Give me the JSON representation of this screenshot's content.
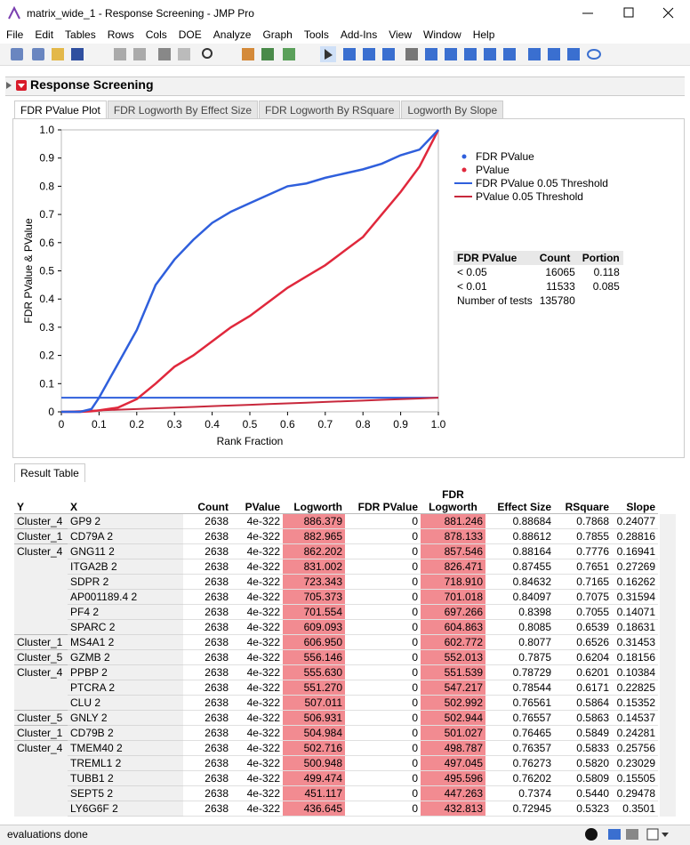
{
  "window": {
    "title": "matrix_wide_1 - Response Screening - JMP Pro"
  },
  "menu": [
    "File",
    "Edit",
    "Tables",
    "Rows",
    "Cols",
    "DOE",
    "Analyze",
    "Graph",
    "Tools",
    "Add-Ins",
    "View",
    "Window",
    "Help"
  ],
  "report": {
    "title": "Response Screening",
    "tabs": [
      "FDR PValue Plot",
      "FDR Logworth By Effect Size",
      "FDR Logworth By RSquare",
      "Logworth By Slope"
    ]
  },
  "chart_data": {
    "type": "line",
    "x_label": "Rank Fraction",
    "y_label": "FDR PValue & PValue",
    "xlim": [
      0,
      1
    ],
    "ylim": [
      0,
      1
    ],
    "xticks": [
      0,
      0.1,
      0.2,
      0.3,
      0.4,
      0.5,
      0.6,
      0.7,
      0.8,
      0.9,
      {
        "value": 1,
        "label": "1.0"
      }
    ],
    "yticks": [
      0,
      0.1,
      0.2,
      0.3,
      0.4,
      0.5,
      0.6,
      0.7,
      0.8,
      0.9,
      {
        "value": 1,
        "label": "1.0"
      }
    ],
    "x": [
      0,
      0.05,
      0.08,
      0.1,
      0.15,
      0.2,
      0.25,
      0.3,
      0.35,
      0.4,
      0.45,
      0.5,
      0.55,
      0.6,
      0.65,
      0.7,
      0.75,
      0.8,
      0.85,
      0.9,
      0.95,
      1
    ],
    "series": [
      {
        "name": "FDR PValue",
        "color": "#2f5fdc",
        "legend_symbol": "dot",
        "values": [
          0,
          0,
          0.01,
          0.05,
          0.17,
          0.29,
          0.45,
          0.54,
          0.61,
          0.67,
          0.71,
          0.74,
          0.77,
          0.8,
          0.81,
          0.83,
          0.845,
          0.86,
          0.88,
          0.91,
          0.93,
          1
        ]
      },
      {
        "name": "PValue",
        "color": "#e0283c",
        "legend_symbol": "dot",
        "values": [
          0,
          0,
          0.002,
          0.005,
          0.015,
          0.045,
          0.1,
          0.16,
          0.2,
          0.25,
          0.3,
          0.34,
          0.39,
          0.44,
          0.48,
          0.52,
          0.57,
          0.62,
          0.7,
          0.78,
          0.87,
          1
        ]
      },
      {
        "name": "FDR PValue 0.05 Threshold",
        "color": "#2f5fdc",
        "legend_symbol": "line",
        "values": [
          0.05,
          0.05,
          0.05,
          0.05,
          0.05,
          0.05,
          0.05,
          0.05,
          0.05,
          0.05,
          0.05,
          0.05,
          0.05,
          0.05,
          0.05,
          0.05,
          0.05,
          0.05,
          0.05,
          0.05,
          0.05,
          0.05
        ]
      },
      {
        "name": "PValue 0.05 Threshold",
        "color": "#c8283c",
        "legend_symbol": "line",
        "values": [
          0,
          0.0025,
          0.004,
          0.005,
          0.0075,
          0.01,
          0.0125,
          0.015,
          0.0175,
          0.02,
          0.0225,
          0.025,
          0.0275,
          0.03,
          0.0325,
          0.035,
          0.0375,
          0.04,
          0.0425,
          0.045,
          0.0475,
          0.05
        ]
      }
    ]
  },
  "stats": {
    "header": [
      "FDR PValue",
      "Count",
      "Portion"
    ],
    "rows": [
      [
        "< 0.05",
        "16065",
        "0.118"
      ],
      [
        "< 0.01",
        "11533",
        "0.085"
      ],
      [
        "Number of tests",
        "135780",
        null
      ]
    ]
  },
  "results": {
    "tab": "Result Table",
    "header": [
      "Y",
      "X",
      "Count",
      "PValue",
      "Logworth",
      "FDR PValue",
      "FDR Logworth",
      "Effect Size",
      "RSquare",
      "Slope"
    ],
    "rows": [
      [
        "Cluster_4",
        "GP9 2",
        "2638",
        "4e-322",
        "886.379",
        "0",
        "881.246",
        "0.88684",
        "0.7868",
        "0.24077"
      ],
      [
        "Cluster_1",
        "CD79A 2",
        "2638",
        "4e-322",
        "882.965",
        "0",
        "878.133",
        "0.88612",
        "0.7855",
        "0.28816"
      ],
      [
        "Cluster_4",
        "GNG11 2",
        "2638",
        "4e-322",
        "862.202",
        "0",
        "857.546",
        "0.88164",
        "0.7776",
        "0.16941"
      ],
      [
        null,
        "ITGA2B 2",
        "2638",
        "4e-322",
        "831.002",
        "0",
        "826.471",
        "0.87455",
        "0.7651",
        "0.27269"
      ],
      [
        null,
        "SDPR 2",
        "2638",
        "4e-322",
        "723.343",
        "0",
        "718.910",
        "0.84632",
        "0.7165",
        "0.16262"
      ],
      [
        null,
        "AP001189.4 2",
        "2638",
        "4e-322",
        "705.373",
        "0",
        "701.018",
        "0.84097",
        "0.7075",
        "0.31594"
      ],
      [
        null,
        "PF4 2",
        "2638",
        "4e-322",
        "701.554",
        "0",
        "697.266",
        "0.8398",
        "0.7055",
        "0.14071"
      ],
      [
        null,
        "SPARC 2",
        "2638",
        "4e-322",
        "609.093",
        "0",
        "604.863",
        "0.8085",
        "0.6539",
        "0.18631"
      ],
      [
        "Cluster_1",
        "MS4A1 2",
        "2638",
        "4e-322",
        "606.950",
        "0",
        "602.772",
        "0.8077",
        "0.6526",
        "0.31453"
      ],
      [
        "Cluster_5",
        "GZMB 2",
        "2638",
        "4e-322",
        "556.146",
        "0",
        "552.013",
        "0.7875",
        "0.6204",
        "0.18156"
      ],
      [
        "Cluster_4",
        "PPBP 2",
        "2638",
        "4e-322",
        "555.630",
        "0",
        "551.539",
        "0.78729",
        "0.6201",
        "0.10384"
      ],
      [
        null,
        "PTCRA 2",
        "2638",
        "4e-322",
        "551.270",
        "0",
        "547.217",
        "0.78544",
        "0.6171",
        "0.22825"
      ],
      [
        null,
        "CLU 2",
        "2638",
        "4e-322",
        "507.011",
        "0",
        "502.992",
        "0.76561",
        "0.5864",
        "0.15352"
      ],
      [
        "Cluster_5",
        "GNLY 2",
        "2638",
        "4e-322",
        "506.931",
        "0",
        "502.944",
        "0.76557",
        "0.5863",
        "0.14537"
      ],
      [
        "Cluster_1",
        "CD79B 2",
        "2638",
        "4e-322",
        "504.984",
        "0",
        "501.027",
        "0.76465",
        "0.5849",
        "0.24281"
      ],
      [
        "Cluster_4",
        "TMEM40 2",
        "2638",
        "4e-322",
        "502.716",
        "0",
        "498.787",
        "0.76357",
        "0.5833",
        "0.25756"
      ],
      [
        null,
        "TREML1 2",
        "2638",
        "4e-322",
        "500.948",
        "0",
        "497.045",
        "0.76273",
        "0.5820",
        "0.23029"
      ],
      [
        null,
        "TUBB1 2",
        "2638",
        "4e-322",
        "499.474",
        "0",
        "495.596",
        "0.76202",
        "0.5809",
        "0.15505"
      ],
      [
        null,
        "SEPT5 2",
        "2638",
        "4e-322",
        "451.117",
        "0",
        "447.263",
        "0.7374",
        "0.5440",
        "0.29478"
      ],
      [
        null,
        "LY6G6F 2",
        "2638",
        "4e-322",
        "436.645",
        "0",
        "432.813",
        "0.72945",
        "0.5323",
        "0.3501"
      ]
    ]
  },
  "status": "evaluations done"
}
